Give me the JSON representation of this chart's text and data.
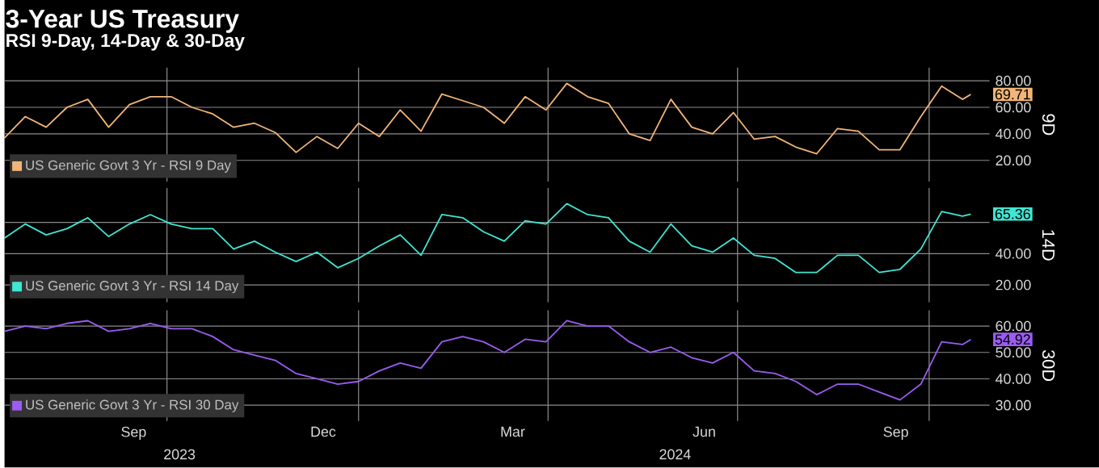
{
  "chart_data": [
    {
      "type": "line",
      "title": "3-Year US Treasury",
      "subtitle": "RSI 9-Day, 14-Day & 30-Day",
      "ylabel": "9D",
      "x": [
        "2023-07-15",
        "2023-07-25",
        "2023-08-04",
        "2023-08-14",
        "2023-08-24",
        "2023-09-03",
        "2023-09-13",
        "2023-09-23",
        "2023-10-03",
        "2023-10-13",
        "2023-10-23",
        "2023-11-02",
        "2023-11-12",
        "2023-11-22",
        "2023-12-02",
        "2023-12-12",
        "2023-12-22",
        "2024-01-01",
        "2024-01-11",
        "2024-01-21",
        "2024-01-31",
        "2024-02-10",
        "2024-02-20",
        "2024-03-01",
        "2024-03-11",
        "2024-03-21",
        "2024-03-31",
        "2024-04-10",
        "2024-04-20",
        "2024-04-30",
        "2024-05-10",
        "2024-05-20",
        "2024-05-30",
        "2024-06-09",
        "2024-06-19",
        "2024-06-29",
        "2024-07-09",
        "2024-07-19",
        "2024-07-29",
        "2024-08-08",
        "2024-08-18",
        "2024-08-28",
        "2024-09-07",
        "2024-09-17",
        "2024-09-27",
        "2024-10-07",
        "2024-10-17",
        "2024-10-21"
      ],
      "series": [
        {
          "name": "US Generic Govt 3 Yr - RSI 9 Day",
          "color": "#f2b577",
          "values": [
            37,
            53,
            45,
            60,
            66,
            45,
            62,
            68,
            68,
            60,
            55,
            45,
            48,
            41,
            26,
            38,
            29,
            48,
            38,
            58,
            42,
            70,
            65,
            60,
            48,
            68,
            58,
            78,
            68,
            63,
            40,
            35,
            66,
            45,
            40,
            56,
            36,
            38,
            30,
            25,
            44,
            42,
            28,
            28,
            53,
            76,
            66,
            69.71
          ],
          "value_labels": [
            null,
            null,
            null,
            null,
            null,
            null,
            null,
            null,
            null,
            null,
            null,
            null,
            null,
            null,
            null,
            null,
            null,
            null,
            null,
            null,
            null,
            null,
            null,
            null,
            null,
            null,
            null,
            null,
            null,
            null,
            null,
            null,
            null,
            null,
            null,
            null,
            null,
            null,
            null,
            null,
            null,
            null,
            null,
            null,
            null,
            null,
            null,
            "69.71"
          ]
        }
      ],
      "xlim": [
        "2023-07-15",
        "2024-10-30"
      ],
      "xticks": [
        {
          "value": "2023-10-01",
          "label": null
        },
        {
          "value": "2024-01-01",
          "label": null
        },
        {
          "value": "2024-04-01",
          "label": null
        },
        {
          "value": "2024-07-01",
          "label": null
        },
        {
          "value": "2024-10-01",
          "label": null
        }
      ],
      "ylim": [
        4,
        90
      ],
      "yticks": [
        {
          "value": 20,
          "label": "20.00"
        },
        {
          "value": 40,
          "label": "40.00"
        },
        {
          "value": 60,
          "label": "60.00"
        },
        {
          "value": 80,
          "label": "80.00"
        }
      ],
      "grid": true,
      "legend": "bottom left",
      "tick_labels": "y"
    },
    {
      "type": "line",
      "ylabel": "14D",
      "x": [
        "2023-07-15",
        "2023-07-25",
        "2023-08-04",
        "2023-08-14",
        "2023-08-24",
        "2023-09-03",
        "2023-09-13",
        "2023-09-23",
        "2023-10-03",
        "2023-10-13",
        "2023-10-23",
        "2023-11-02",
        "2023-11-12",
        "2023-11-22",
        "2023-12-02",
        "2023-12-12",
        "2023-12-22",
        "2024-01-01",
        "2024-01-11",
        "2024-01-21",
        "2024-01-31",
        "2024-02-10",
        "2024-02-20",
        "2024-03-01",
        "2024-03-11",
        "2024-03-21",
        "2024-03-31",
        "2024-04-10",
        "2024-04-20",
        "2024-04-30",
        "2024-05-10",
        "2024-05-20",
        "2024-05-30",
        "2024-06-09",
        "2024-06-19",
        "2024-06-29",
        "2024-07-09",
        "2024-07-19",
        "2024-07-29",
        "2024-08-08",
        "2024-08-18",
        "2024-08-28",
        "2024-09-07",
        "2024-09-17",
        "2024-09-27",
        "2024-10-07",
        "2024-10-17",
        "2024-10-21"
      ],
      "series": [
        {
          "name": "US Generic Govt 3 Yr - RSI 14 Day",
          "color": "#3fe6d3",
          "values": [
            50,
            59,
            52,
            56,
            63,
            51,
            59,
            65,
            59,
            56,
            56,
            43,
            48,
            41,
            35,
            41,
            31,
            37,
            45,
            52,
            39,
            65,
            63,
            54,
            48,
            61,
            59,
            72,
            65,
            63,
            48,
            41,
            59,
            45,
            41,
            50,
            39,
            37,
            28,
            28,
            39,
            39,
            28,
            30,
            43,
            67,
            64,
            65.36
          ],
          "value_labels": [
            null,
            null,
            null,
            null,
            null,
            null,
            null,
            null,
            null,
            null,
            null,
            null,
            null,
            null,
            null,
            null,
            null,
            null,
            null,
            null,
            null,
            null,
            null,
            null,
            null,
            null,
            null,
            null,
            null,
            null,
            null,
            null,
            null,
            null,
            null,
            null,
            null,
            null,
            null,
            null,
            null,
            null,
            null,
            null,
            null,
            null,
            null,
            "65.36"
          ]
        }
      ],
      "xlim": [
        "2023-07-15",
        "2024-10-30"
      ],
      "xticks": [
        {
          "value": "2023-10-01",
          "label": null
        },
        {
          "value": "2024-01-01",
          "label": null
        },
        {
          "value": "2024-04-01",
          "label": null
        },
        {
          "value": "2024-07-01",
          "label": null
        },
        {
          "value": "2024-10-01",
          "label": null
        }
      ],
      "ylim": [
        9,
        82
      ],
      "yticks": [
        {
          "value": 20,
          "label": "20.00"
        },
        {
          "value": 40,
          "label": "40.00"
        },
        {
          "value": 60,
          "label": null
        }
      ],
      "grid": true,
      "legend": "bottom left",
      "tick_labels": "y"
    },
    {
      "type": "line",
      "ylabel": "30D",
      "x": [
        "2023-07-15",
        "2023-07-25",
        "2023-08-04",
        "2023-08-14",
        "2023-08-24",
        "2023-09-03",
        "2023-09-13",
        "2023-09-23",
        "2023-10-03",
        "2023-10-13",
        "2023-10-23",
        "2023-11-02",
        "2023-11-12",
        "2023-11-22",
        "2023-12-02",
        "2023-12-12",
        "2023-12-22",
        "2024-01-01",
        "2024-01-11",
        "2024-01-21",
        "2024-01-31",
        "2024-02-10",
        "2024-02-20",
        "2024-03-01",
        "2024-03-11",
        "2024-03-21",
        "2024-03-31",
        "2024-04-10",
        "2024-04-20",
        "2024-04-30",
        "2024-05-10",
        "2024-05-20",
        "2024-05-30",
        "2024-06-09",
        "2024-06-19",
        "2024-06-29",
        "2024-07-09",
        "2024-07-19",
        "2024-07-29",
        "2024-08-08",
        "2024-08-18",
        "2024-08-28",
        "2024-09-07",
        "2024-09-17",
        "2024-09-27",
        "2024-10-07",
        "2024-10-17",
        "2024-10-21"
      ],
      "series": [
        {
          "name": "US Generic Govt 3 Yr - RSI 30 Day",
          "color": "#9c5cf2",
          "values": [
            58,
            60,
            59,
            61,
            62,
            58,
            59,
            61,
            59,
            59,
            56,
            51,
            49,
            47,
            42,
            40,
            38,
            39,
            43,
            46,
            44,
            54,
            56,
            54,
            50,
            55,
            54,
            62,
            60,
            60,
            54,
            50,
            52,
            48,
            46,
            50,
            43,
            42,
            39,
            34,
            38,
            38,
            35,
            32,
            38,
            54,
            53,
            54.92
          ],
          "value_labels": [
            null,
            null,
            null,
            null,
            null,
            null,
            null,
            null,
            null,
            null,
            null,
            null,
            null,
            null,
            null,
            null,
            null,
            null,
            null,
            null,
            null,
            null,
            null,
            null,
            null,
            null,
            null,
            null,
            null,
            null,
            null,
            null,
            null,
            null,
            null,
            null,
            null,
            null,
            null,
            null,
            null,
            null,
            null,
            null,
            null,
            null,
            null,
            "54.92"
          ]
        }
      ],
      "xlim": [
        "2023-07-15",
        "2024-10-30"
      ],
      "xticks": [
        {
          "value": "2023-09-15",
          "label": "Sep"
        },
        {
          "value": "2023-10-01",
          "label": null
        },
        {
          "value": "2023-12-15",
          "label": "Dec"
        },
        {
          "value": "2024-01-01",
          "label": null
        },
        {
          "value": "2024-03-15",
          "label": "Mar"
        },
        {
          "value": "2024-04-01",
          "label": null
        },
        {
          "value": "2024-06-15",
          "label": "Jun"
        },
        {
          "value": "2024-07-01",
          "label": null
        },
        {
          "value": "2024-09-15",
          "label": "Sep"
        },
        {
          "value": "2024-10-01",
          "label": null
        }
      ],
      "x2lim": [
        "2023-07-15",
        "2024-10-30"
      ],
      "x2ticks": [
        {
          "value": "2023-10-07",
          "label": "2023"
        },
        {
          "value": "2024-06-01",
          "label": "2024"
        }
      ],
      "ylim": [
        24,
        66
      ],
      "yticks": [
        {
          "value": 30,
          "label": "30.00"
        },
        {
          "value": 40,
          "label": "40.00"
        },
        {
          "value": 50,
          "label": "50.00"
        },
        {
          "value": 60,
          "label": "60.00"
        }
      ],
      "grid": true,
      "legend": "bottom left"
    }
  ]
}
